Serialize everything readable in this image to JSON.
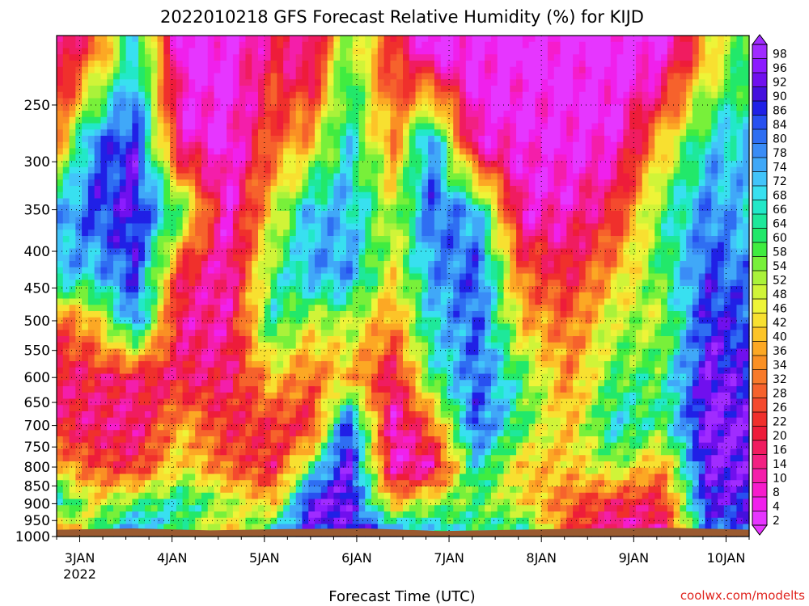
{
  "chart_data": {
    "type": "heatmap",
    "title": "2022010218 GFS Forecast Relative Humidity (%) for KIJD",
    "xlabel": "Forecast Time (UTC)",
    "ylabel": "",
    "credit": "coolwx.com/modelts",
    "y_axis": {
      "scale": "log",
      "inverted": true,
      "range": [
        200,
        1000
      ],
      "ticks": [
        250,
        300,
        350,
        400,
        450,
        500,
        550,
        600,
        650,
        700,
        750,
        800,
        850,
        900,
        950,
        1000
      ]
    },
    "x_axis": {
      "range_days": [
        2.75,
        10.25
      ],
      "ticks": [
        {
          "day": 3,
          "label": "3JAN",
          "sublabel": "2022"
        },
        {
          "day": 4,
          "label": "4JAN"
        },
        {
          "day": 5,
          "label": "5JAN"
        },
        {
          "day": 6,
          "label": "6JAN"
        },
        {
          "day": 7,
          "label": "7JAN"
        },
        {
          "day": 8,
          "label": "8JAN"
        },
        {
          "day": 9,
          "label": "9JAN"
        },
        {
          "day": 10,
          "label": "10JAN"
        }
      ]
    },
    "grid": true,
    "colorbar": {
      "levels": [
        "98",
        "96",
        "92",
        "90",
        "86",
        "84",
        "80",
        "78",
        "74",
        "72",
        "68",
        "66",
        "64",
        "60",
        "58",
        "54",
        "52",
        "48",
        "46",
        "42",
        "40",
        "36",
        "34",
        "32",
        "28",
        "26",
        "22",
        "20",
        "16",
        "14",
        "10",
        "8",
        "4",
        "2"
      ],
      "colors": [
        "#a02cff",
        "#8c1cff",
        "#7010ee",
        "#4410dd",
        "#2020e6",
        "#2850f0",
        "#2f6ef2",
        "#3a8cf6",
        "#40a8f8",
        "#42c4fa",
        "#38e0f0",
        "#22e8c8",
        "#1ee89a",
        "#22e86a",
        "#40ec40",
        "#78f03a",
        "#aaf23a",
        "#d0f438",
        "#eef438",
        "#f8e030",
        "#fcc428",
        "#fca824",
        "#fa9024",
        "#f87a2a",
        "#f6622c",
        "#f44a2e",
        "#f0302c",
        "#ee1c3a",
        "#f01c60",
        "#f22082",
        "#f41eaa",
        "#f61ccc",
        "#f020ec",
        "#e636ff"
      ]
    },
    "columns": [
      {
        "day": 2.8,
        "profile": [
          10,
          40,
          74,
          74,
          30,
          16,
          20,
          40,
          70,
          30
        ]
      },
      {
        "day": 3.15,
        "profile": [
          30,
          80,
          86,
          72,
          40,
          20,
          16,
          28,
          46,
          60
        ]
      },
      {
        "day": 3.6,
        "profile": [
          70,
          90,
          92,
          88,
          80,
          18,
          14,
          22,
          60,
          80
        ]
      },
      {
        "day": 4.1,
        "profile": [
          4,
          10,
          60,
          20,
          14,
          18,
          40,
          46,
          68,
          60
        ]
      },
      {
        "day": 4.6,
        "profile": [
          2,
          4,
          6,
          10,
          12,
          16,
          22,
          30,
          54,
          40
        ]
      },
      {
        "day": 5.1,
        "profile": [
          20,
          30,
          46,
          60,
          66,
          42,
          24,
          20,
          40,
          70
        ]
      },
      {
        "day": 5.5,
        "profile": [
          10,
          40,
          74,
          76,
          50,
          30,
          20,
          60,
          96,
          90
        ]
      },
      {
        "day": 5.9,
        "profile": [
          60,
          70,
          74,
          78,
          54,
          42,
          90,
          98,
          96,
          92
        ]
      },
      {
        "day": 6.4,
        "profile": [
          22,
          34,
          50,
          46,
          34,
          16,
          8,
          10,
          40,
          80
        ]
      },
      {
        "day": 6.8,
        "profile": [
          4,
          80,
          84,
          76,
          70,
          60,
          30,
          10,
          54,
          72
        ]
      },
      {
        "day": 7.3,
        "profile": [
          2,
          8,
          74,
          86,
          84,
          84,
          86,
          70,
          60,
          64
        ]
      },
      {
        "day": 7.8,
        "profile": [
          2,
          6,
          8,
          30,
          40,
          60,
          60,
          40,
          46,
          66
        ]
      },
      {
        "day": 8.3,
        "profile": [
          2,
          4,
          10,
          20,
          30,
          34,
          40,
          42,
          30,
          28
        ]
      },
      {
        "day": 8.8,
        "profile": [
          2,
          6,
          22,
          40,
          52,
          60,
          70,
          54,
          20,
          10
        ]
      },
      {
        "day": 9.3,
        "profile": [
          2,
          40,
          60,
          60,
          52,
          60,
          60,
          34,
          20,
          14
        ]
      },
      {
        "day": 9.8,
        "profile": [
          40,
          70,
          80,
          86,
          90,
          96,
          98,
          96,
          92,
          80
        ]
      },
      {
        "day": 10.2,
        "profile": [
          60,
          72,
          72,
          80,
          86,
          90,
          96,
          96,
          90,
          84
        ]
      }
    ],
    "profile_levels_hpa": [
      210,
      280,
      350,
      430,
      500,
      600,
      700,
      800,
      900,
      980
    ],
    "surface_hpa": [
      1010,
      1012,
      1009,
      1011,
      1012,
      1008,
      1010,
      1012,
      1013,
      1010
    ]
  }
}
